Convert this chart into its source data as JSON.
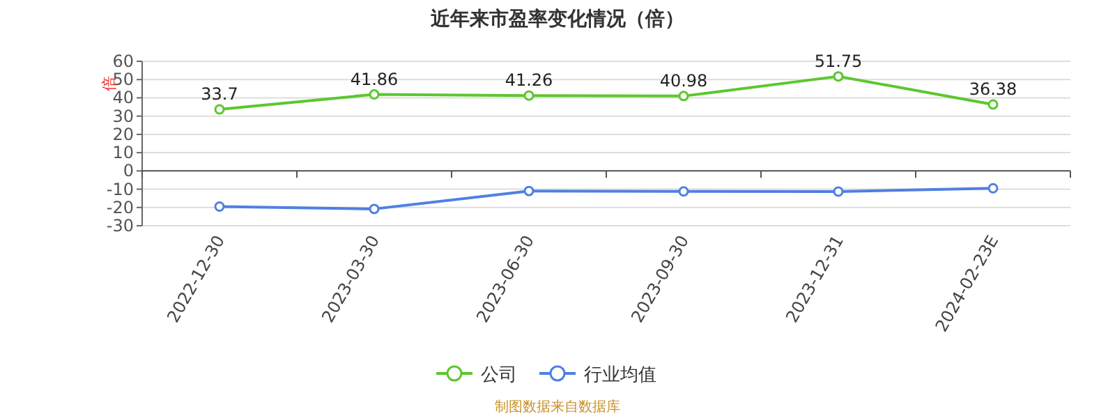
{
  "chart_data": {
    "type": "line",
    "title": "近年来市盈率变化情况（倍）",
    "ylabel": "倍",
    "categories": [
      "2022-12-30",
      "2023-03-30",
      "2023-06-30",
      "2023-09-30",
      "2023-12-31",
      "2024-02-23E"
    ],
    "series": [
      {
        "name": "公司",
        "color": "#5cc72e",
        "values": [
          33.7,
          41.86,
          41.26,
          40.98,
          51.75,
          36.38
        ],
        "value_labels": [
          "33.7",
          "41.86",
          "41.26",
          "40.98",
          "51.75",
          "36.38"
        ]
      },
      {
        "name": "行业均值",
        "color": "#4f80e2",
        "values": [
          -19.5,
          -20.8,
          -11,
          -11.2,
          -11.3,
          -9.5
        ]
      }
    ],
    "ylim": [
      -30,
      60
    ],
    "yticks": [
      -30,
      -20,
      -10,
      0,
      10,
      20,
      30,
      40,
      50,
      60
    ],
    "grid": "y",
    "legend": "bottom",
    "marker": "circle",
    "annotations": [
      "制图数据来自数据库"
    ]
  }
}
